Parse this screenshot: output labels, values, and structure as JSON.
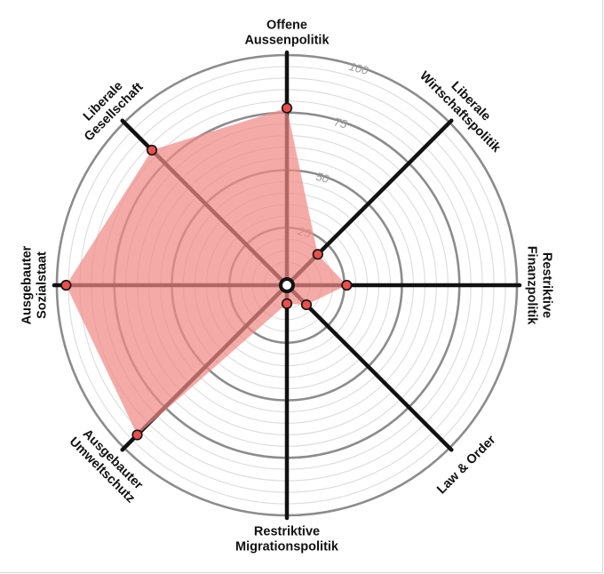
{
  "chart_data": {
    "type": "radar",
    "axes": [
      {
        "label": [
          "Offene",
          "Aussenpolitik"
        ],
        "value": 77
      },
      {
        "label": [
          "Liberale",
          "Wirtschaftspolitik"
        ],
        "value": 19
      },
      {
        "label": [
          "Restriktive",
          "Finanzpolitik"
        ],
        "value": 26
      },
      {
        "label": [
          "Law & Order"
        ],
        "value": 12
      },
      {
        "label": [
          "Restriktive",
          "Migrationspolitik"
        ],
        "value": 8
      },
      {
        "label": [
          "Ausgebauter",
          "Umweltschutz"
        ],
        "value": 92
      },
      {
        "label": [
          "Ausgebauter",
          "Sozialstaat"
        ],
        "value": 96
      },
      {
        "label": [
          "Liberale",
          "Gesellschaft"
        ],
        "value": 83
      }
    ],
    "range": [
      0,
      100
    ],
    "ticks": [
      "25",
      "50",
      "75",
      "100"
    ],
    "grid_minor_step": 5,
    "colors": {
      "fill": "#f08a86",
      "dot": "#e8504b",
      "spoke": "#111111",
      "major_ring": "#8c8c8c",
      "minor_ring": "#dedede"
    }
  }
}
